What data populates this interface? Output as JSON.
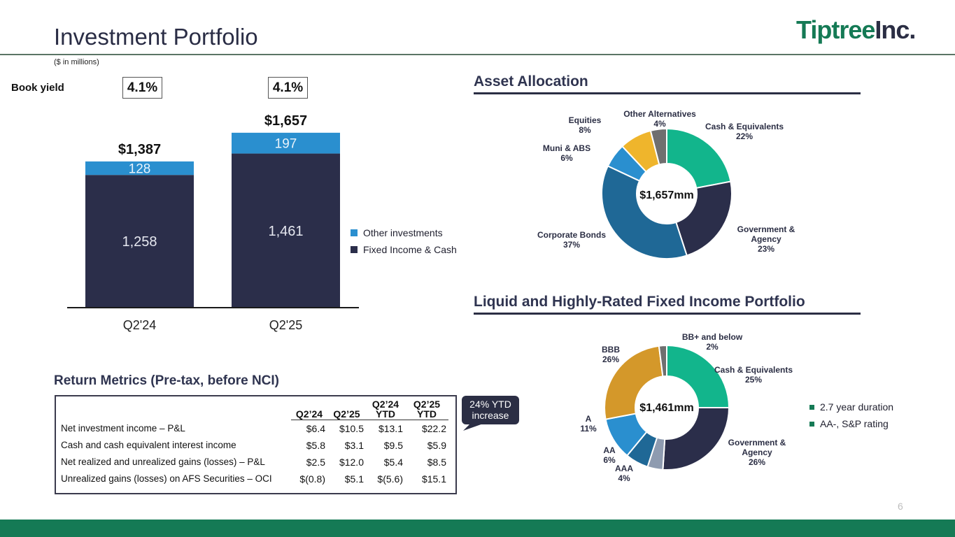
{
  "header": {
    "title": "Investment Portfolio",
    "logo_part1": "Tiptree",
    "logo_part2": "Inc.",
    "units": "($ in millions)",
    "page_number": "6"
  },
  "book_yield": {
    "label": "Book yield",
    "values": [
      "4.1%",
      "4.1%"
    ]
  },
  "bar_chart": {
    "legend": [
      {
        "label": "Other investments",
        "color": "#2a8fcf"
      },
      {
        "label": "Fixed Income & Cash",
        "color": "#2b2e4a"
      }
    ]
  },
  "asset_allocation": {
    "title": "Asset Allocation",
    "center_label": "$1,657mm"
  },
  "fixed_income": {
    "title": "Liquid and Highly-Rated Fixed Income Portfolio",
    "center_label": "$1,461mm",
    "bullets": [
      {
        "label": "2.7 year duration",
        "color": "#157a55"
      },
      {
        "label": "AA-, S&P rating",
        "color": "#157a55"
      }
    ]
  },
  "return_metrics": {
    "title": "Return Metrics (Pre-tax, before NCI)",
    "columns": [
      "Q2’24",
      "Q2’25",
      "Q2’24 YTD",
      "Q2’25 YTD"
    ],
    "rows": [
      {
        "label": "Net investment income – P&L",
        "values": [
          "$6.4",
          "$10.5",
          "$13.1",
          "$22.2"
        ]
      },
      {
        "label": "Cash and cash equivalent interest income",
        "values": [
          "$5.8",
          "$3.1",
          "$9.5",
          "$5.9"
        ]
      },
      {
        "label": "Net realized and unrealized gains (losses) – P&L",
        "values": [
          "$2.5",
          "$12.0",
          "$5.4",
          "$8.5"
        ]
      },
      {
        "label": "Unrealized gains (losses) on AFS Securities – OCI",
        "values": [
          "$(0.8)",
          "$5.1",
          "$(5.6)",
          "$15.1"
        ]
      }
    ],
    "callout": "24% YTD increase"
  },
  "chart_data": [
    {
      "type": "bar",
      "stacked": true,
      "categories": [
        "Q2'24",
        "Q2'25"
      ],
      "series": [
        {
          "name": "Fixed Income & Cash",
          "values": [
            1258,
            1461
          ],
          "labels": [
            "1,258",
            "1,461"
          ],
          "color": "#2b2e4a"
        },
        {
          "name": "Other investments",
          "values": [
            128,
            197
          ],
          "labels": [
            "128",
            "197"
          ],
          "color": "#2a8fcf"
        }
      ],
      "totals": [
        "$1,387",
        "$1,657"
      ],
      "legend_position": "right",
      "grid": false
    },
    {
      "type": "pie",
      "variant": "donut",
      "title": "Asset Allocation",
      "slices": [
        {
          "label": "Cash & Equivalents",
          "pct_label": "22%",
          "value": 22,
          "color": "#12b58c"
        },
        {
          "label": "Government & Agency",
          "pct_label": "23%",
          "value": 23,
          "color": "#2b2e4a"
        },
        {
          "label": "Corporate Bonds",
          "pct_label": "37%",
          "value": 37,
          "color": "#1f6896"
        },
        {
          "label": "Muni & ABS",
          "pct_label": "6%",
          "value": 6,
          "color": "#2a8fcf"
        },
        {
          "label": "Equities",
          "pct_label": "8%",
          "value": 8,
          "color": "#efb52c"
        },
        {
          "label": "Other Alternatives",
          "pct_label": "4%",
          "value": 4,
          "color": "#6f6f6f"
        }
      ]
    },
    {
      "type": "pie",
      "variant": "donut",
      "title": "Liquid and Highly-Rated Fixed Income Portfolio",
      "slices": [
        {
          "label": "Cash & Equivalents",
          "pct_label": "25%",
          "value": 25,
          "color": "#12b58c"
        },
        {
          "label": "Government & Agency",
          "pct_label": "26%",
          "value": 26,
          "color": "#2b2e4a"
        },
        {
          "label": "AAA",
          "pct_label": "4%",
          "value": 4,
          "color": "#8e9bb0"
        },
        {
          "label": "AA",
          "pct_label": "6%",
          "value": 6,
          "color": "#1f6896"
        },
        {
          "label": "A",
          "pct_label": "11%",
          "value": 11,
          "color": "#2a8fcf"
        },
        {
          "label": "BBB",
          "pct_label": "26%",
          "value": 26,
          "color": "#d4982a"
        },
        {
          "label": "BB+ and below",
          "pct_label": "2%",
          "value": 2,
          "color": "#6f6f6f"
        }
      ]
    }
  ]
}
